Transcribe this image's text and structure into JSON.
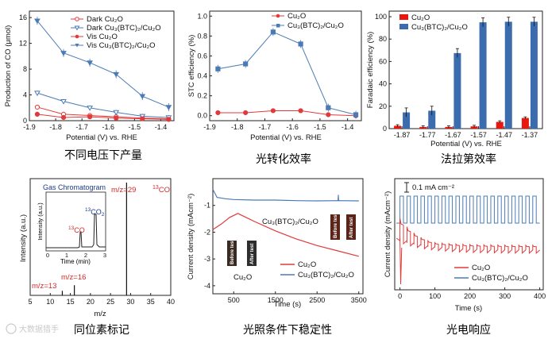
{
  "captions": [
    "不同电压下产量",
    "光转化效率",
    "法拉第效率",
    "同位素标记",
    "光照条件下稳定性",
    "光电响应"
  ],
  "watermark": "大数据猎手",
  "colors": {
    "red": "#e23a3a",
    "blue": "#4a7bb5",
    "bar_red": "#e8170f",
    "bar_blue": "#3a6cae"
  },
  "chart_data": [
    {
      "type": "line",
      "title": "不同电压下产量",
      "xlabel": "Potential (V) vs. RHE",
      "ylabel": "Production of CO (μmol)",
      "xlim": [
        -1.9,
        -1.35
      ],
      "ylim": [
        0,
        17
      ],
      "xticks": [
        -1.9,
        -1.8,
        -1.7,
        -1.6,
        -1.5,
        -1.4
      ],
      "xtick_labels": [
        "-1.9",
        "-1.8",
        "-1.7",
        "-1.6",
        "-1.5",
        "-1.4"
      ],
      "yticks": [
        0,
        4,
        8,
        12,
        16
      ],
      "x": [
        -1.87,
        -1.77,
        -1.67,
        -1.57,
        -1.47,
        -1.37
      ],
      "series": [
        {
          "name": "Dark Cu₂O",
          "marker": "circle-open",
          "color": "#e23a3a",
          "values": [
            2.1,
            1.0,
            0.8,
            0.6,
            0.4,
            0.3
          ]
        },
        {
          "name": "Dark Cu₃(BTC)₂/Cu₂O",
          "marker": "triangle-down-open",
          "color": "#4a7bb5",
          "values": [
            4.3,
            3.0,
            2.0,
            1.3,
            0.7,
            0.5
          ]
        },
        {
          "name": "Vis Cu₂O",
          "marker": "circle",
          "color": "#e23a3a",
          "values": [
            1.0,
            0.5,
            0.6,
            0.4,
            0.3,
            0.2
          ]
        },
        {
          "name": "Vis Cu₃(BTC)₂/Cu₂O",
          "marker": "triangle-down",
          "color": "#4a7bb5",
          "values": [
            15.5,
            10.5,
            9.0,
            7.2,
            3.8,
            2.1
          ]
        }
      ]
    },
    {
      "type": "line",
      "title": "光转化效率",
      "xlabel": "Potential (V) vs. RHE",
      "ylabel": "STC efficiency (%)",
      "xlim": [
        -1.9,
        -1.35
      ],
      "ylim": [
        -0.05,
        1.05
      ],
      "xticks": [
        -1.9,
        -1.8,
        -1.7,
        -1.6,
        -1.5,
        -1.4
      ],
      "xtick_labels": [
        "-1.9",
        "-1.8",
        "-1.7",
        "-1.6",
        "-1.5",
        "-1.4"
      ],
      "yticks": [
        0.0,
        0.2,
        0.4,
        0.6,
        0.8,
        1.0
      ],
      "x": [
        -1.87,
        -1.77,
        -1.67,
        -1.57,
        -1.47,
        -1.37
      ],
      "series": [
        {
          "name": "Cu₂O",
          "marker": "circle",
          "color": "#e23a3a",
          "values": [
            0.03,
            0.03,
            0.05,
            0.05,
            0.01,
            0.0
          ]
        },
        {
          "name": "Cu₃(BTC)₂/Cu₂O",
          "marker": "square",
          "color": "#4a7bb5",
          "values": [
            0.47,
            0.52,
            0.84,
            0.72,
            0.08,
            0.01
          ]
        }
      ]
    },
    {
      "type": "bar",
      "title": "法拉第效率",
      "xlabel": "Potential (V) vs. RHE",
      "ylabel": "Faradaic efficiency (%)",
      "categories": [
        "-1.87",
        "-1.77",
        "-1.67",
        "-1.57",
        "-1.47",
        "-1.37"
      ],
      "ylim": [
        0,
        105
      ],
      "yticks": [
        0,
        20,
        40,
        60,
        80,
        100
      ],
      "series": [
        {
          "name": "Cu₂O",
          "color": "#e8170f",
          "values": [
            2.5,
            1.5,
            1.5,
            2.0,
            6.0,
            9.5
          ]
        },
        {
          "name": "Cu₃(BTC)₂/Cu₂O",
          "color": "#3a6cae",
          "values": [
            14.5,
            16.0,
            67.5,
            95.0,
            95.5,
            95.5
          ]
        }
      ]
    },
    {
      "type": "bar",
      "title": "同位素标记",
      "xlabel": "m/z",
      "ylabel": "Intensity (a.u.)",
      "xlim": [
        5,
        40
      ],
      "xticks": [
        5,
        10,
        15,
        20,
        25,
        30,
        35,
        40
      ],
      "peaks": [
        {
          "mz": 13,
          "intensity": 0.04
        },
        {
          "mz": 16,
          "intensity": 0.09
        },
        {
          "mz": 29,
          "intensity": 1.0
        }
      ],
      "annotations": [
        "m/z=29",
        "13CO",
        "m/z=16",
        "m/z=13"
      ],
      "inset": {
        "title": "Gas Chromatogram",
        "xlabel": "Time (min)",
        "ylabel": "Intensity (a.u.)",
        "xticks": [
          0,
          1,
          2,
          3
        ],
        "labels": [
          "13CO",
          "13CO2"
        ],
        "peak_times": [
          1.85,
          2.5
        ]
      }
    },
    {
      "type": "line",
      "title": "光照条件下稳定性",
      "xlabel": "Time (s)",
      "ylabel": "Current density (mAcm⁻²)",
      "xlim": [
        0,
        3600
      ],
      "ylim": [
        -4.3,
        0
      ],
      "xticks": [
        500,
        1500,
        2500,
        3500
      ],
      "yticks": [
        -1,
        -2,
        -3,
        -4
      ],
      "series": [
        {
          "name": "Cu₂O",
          "color": "#e23a3a",
          "x": [
            0,
            200,
            400,
            600,
            800,
            1000,
            1500,
            2000,
            2500,
            3000,
            3500
          ],
          "values": [
            -1.9,
            -1.7,
            -1.45,
            -1.3,
            -1.45,
            -1.6,
            -1.95,
            -2.25,
            -2.5,
            -2.7,
            -2.9
          ]
        },
        {
          "name": "Cu₃(BTC)₂/Cu₂O",
          "color": "#4a7bb5",
          "x": [
            0,
            100,
            300,
            500,
            1000,
            1500,
            2000,
            2500,
            3000,
            3500
          ],
          "values": [
            -0.4,
            -0.7,
            -0.75,
            -0.78,
            -0.8,
            -0.8,
            -0.82,
            -0.83,
            -0.82,
            -0.83
          ]
        }
      ],
      "labels": {
        "curve_label": "Cu₃(BTC)₂/Cu₂O",
        "before": "Before test",
        "after": "After test",
        "sample": "Cu₂O"
      }
    },
    {
      "type": "line",
      "title": "光电响应",
      "xlabel": "Time (s)",
      "ylabel": "Current density (mAcm⁻²)",
      "xlim": [
        -15,
        410
      ],
      "xticks": [
        0,
        100,
        200,
        300,
        400
      ],
      "scale_bar": "0.1 mA cm⁻²",
      "series": [
        {
          "name": "Cu₂O",
          "color": "#e23a3a",
          "pattern": "decaying on/off chopped photocurrent"
        },
        {
          "name": "Cu₃(BTC)₂/Cu₂O",
          "color": "#4a7bb5",
          "pattern": "square-wave on/off photocurrent"
        }
      ]
    }
  ]
}
